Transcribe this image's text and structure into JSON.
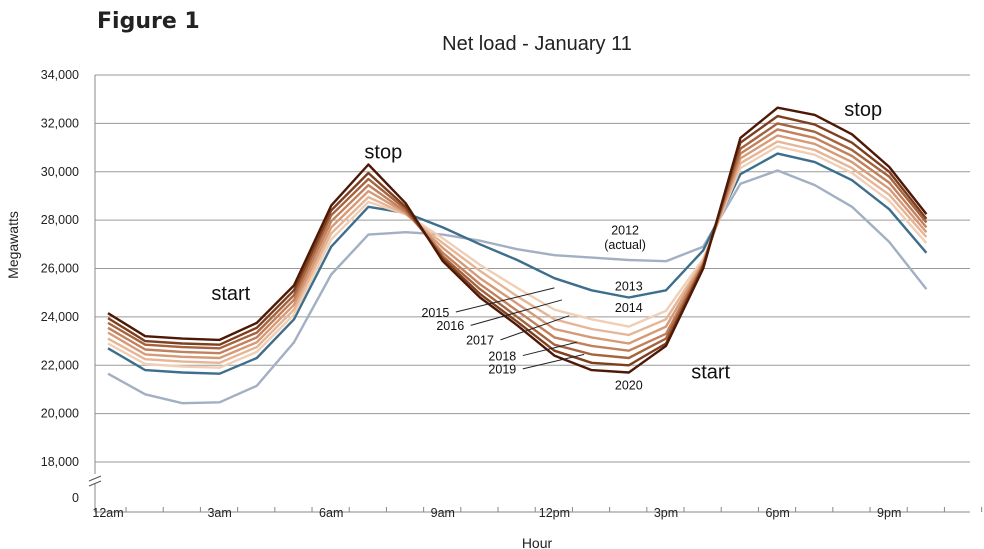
{
  "figure_label": "Figure 1",
  "chart_data": {
    "type": "line",
    "title": "Net load - January 11",
    "xlabel": "Hour",
    "ylabel": "Megawatts",
    "x": [
      0,
      1,
      2,
      3,
      4,
      5,
      6,
      7,
      8,
      9,
      10,
      11,
      12,
      13,
      14,
      15,
      16,
      17,
      18,
      19,
      20,
      21,
      22,
      23
    ],
    "xticks": [
      {
        "label": "12am",
        "hour": 0
      },
      {
        "label": "3am",
        "hour": 3
      },
      {
        "label": "6am",
        "hour": 6
      },
      {
        "label": "9am",
        "hour": 9
      },
      {
        "label": "12pm",
        "hour": 12
      },
      {
        "label": "3pm",
        "hour": 15
      },
      {
        "label": "6pm",
        "hour": 18
      },
      {
        "label": "9pm",
        "hour": 21
      }
    ],
    "yticks": [
      "0",
      "18,000",
      "20,000",
      "22,000",
      "24,000",
      "26,000",
      "28,000",
      "30,000",
      "32,000",
      "34,000"
    ],
    "ylim": [
      18000,
      34000
    ],
    "axis_break": true,
    "grid": true,
    "series": [
      {
        "name": "2012 (actual)",
        "color": "#a3afc3",
        "values": [
          21650,
          20800,
          20430,
          20470,
          21150,
          22950,
          25750,
          27400,
          27500,
          27400,
          27150,
          26800,
          26550,
          26450,
          26350,
          26300,
          26900,
          29500,
          30050,
          29450,
          28550,
          27100,
          25150,
          null
        ]
      },
      {
        "name": "2013",
        "color": "#3d6e8c",
        "values": [
          22700,
          21800,
          21700,
          21650,
          22300,
          23900,
          26900,
          28550,
          28300,
          27700,
          27000,
          26350,
          25600,
          25100,
          24800,
          25100,
          26750,
          29900,
          30750,
          30400,
          29650,
          28450,
          26650,
          null
        ]
      },
      {
        "name": "2014",
        "color": "#f0cfb6",
        "values": [
          22900,
          22050,
          21950,
          21900,
          22550,
          24100,
          27200,
          28750,
          28250,
          27250,
          26150,
          25200,
          24300,
          23900,
          23600,
          24250,
          26400,
          30150,
          31050,
          30700,
          29950,
          28800,
          27050,
          null
        ]
      },
      {
        "name": "2015",
        "color": "#e6b596",
        "values": [
          23100,
          22250,
          22150,
          22100,
          22750,
          24300,
          27450,
          28950,
          28250,
          27050,
          25900,
          24850,
          23900,
          23500,
          23250,
          23900,
          26300,
          30350,
          31250,
          30900,
          30150,
          29050,
          27300,
          null
        ]
      },
      {
        "name": "2016",
        "color": "#d69a77",
        "values": [
          23350,
          22450,
          22350,
          22300,
          22950,
          24500,
          27700,
          29200,
          28300,
          26850,
          25600,
          24550,
          23500,
          23150,
          22900,
          23600,
          26250,
          30550,
          31500,
          31150,
          30400,
          29300,
          27500,
          null
        ]
      },
      {
        "name": "2017",
        "color": "#c2805c",
        "values": [
          23550,
          22650,
          22550,
          22500,
          23150,
          24700,
          27950,
          29450,
          28350,
          26650,
          25350,
          24250,
          23150,
          22800,
          22600,
          23300,
          26200,
          30750,
          31750,
          31400,
          30650,
          29550,
          27700,
          null
        ]
      },
      {
        "name": "2018",
        "color": "#a5633e",
        "values": [
          23750,
          22850,
          22750,
          22700,
          23350,
          24900,
          28200,
          29700,
          28450,
          26500,
          25150,
          24000,
          22850,
          22450,
          22300,
          23100,
          26150,
          30950,
          32000,
          31650,
          30900,
          29800,
          27900,
          null
        ]
      },
      {
        "name": "2019",
        "color": "#7e3f1f",
        "values": [
          23950,
          23000,
          22900,
          22850,
          23550,
          25100,
          28400,
          29950,
          28550,
          26400,
          24950,
          23800,
          22600,
          22100,
          22000,
          22900,
          26100,
          31200,
          32300,
          31950,
          31200,
          30000,
          28050,
          null
        ]
      },
      {
        "name": "2020",
        "color": "#4d1806",
        "values": [
          24150,
          23200,
          23100,
          23050,
          23750,
          25300,
          28600,
          30300,
          28700,
          26300,
          24800,
          23650,
          22400,
          21800,
          21700,
          22800,
          26000,
          31400,
          32650,
          32350,
          31550,
          30200,
          28250,
          null
        ]
      }
    ],
    "annotations": [
      {
        "text": "start",
        "hour": 3.3,
        "y": 24700,
        "style": "big"
      },
      {
        "text": "stop",
        "hour": 7.4,
        "y": 30550,
        "style": "big"
      },
      {
        "text": "start",
        "hour": 16.2,
        "y": 21450,
        "style": "big"
      },
      {
        "text": "stop",
        "hour": 20.3,
        "y": 32300,
        "style": "big"
      },
      {
        "text": "2012",
        "hour": 13.9,
        "y": 27400,
        "style": "small"
      },
      {
        "text": "(actual)",
        "hour": 13.9,
        "y": 26800,
        "style": "small"
      },
      {
        "text": "2013",
        "hour": 14.0,
        "y": 25100,
        "style": "small"
      },
      {
        "text": "2014",
        "hour": 14.0,
        "y": 24200,
        "style": "small"
      },
      {
        "text": "2015",
        "hour": 8.8,
        "y": 24000,
        "style": "small"
      },
      {
        "text": "2016",
        "hour": 9.2,
        "y": 23450,
        "style": "small"
      },
      {
        "text": "2017",
        "hour": 10.0,
        "y": 22850,
        "style": "small"
      },
      {
        "text": "2018",
        "hour": 10.6,
        "y": 22200,
        "style": "small"
      },
      {
        "text": "2019",
        "hour": 10.6,
        "y": 21650,
        "style": "small"
      },
      {
        "text": "2020",
        "hour": 14.0,
        "y": 21000,
        "style": "small"
      }
    ],
    "leaders": [
      {
        "from_hour": 9.35,
        "from_y": 24200,
        "to_hour": 12.0,
        "to_y": 25200
      },
      {
        "from_hour": 9.75,
        "from_y": 23650,
        "to_hour": 12.2,
        "to_y": 24700
      },
      {
        "from_hour": 10.55,
        "from_y": 23050,
        "to_hour": 12.4,
        "to_y": 24050
      },
      {
        "from_hour": 11.15,
        "from_y": 22400,
        "to_hour": 12.6,
        "to_y": 22950
      },
      {
        "from_hour": 11.15,
        "from_y": 21850,
        "to_hour": 12.8,
        "to_y": 22450
      }
    ]
  }
}
